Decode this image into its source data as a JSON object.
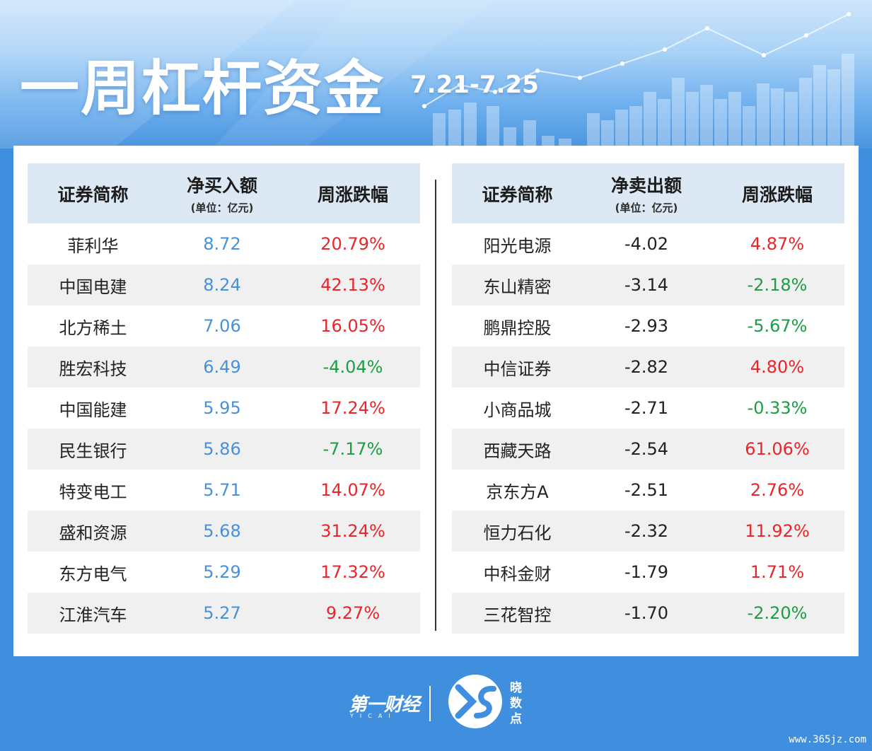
{
  "header": {
    "title": "一周杠杆资金",
    "date_range": "7.21-7.25"
  },
  "buy_table": {
    "col_name": "证券简称",
    "col_amount": "净买入额",
    "col_amount_unit": "(单位：亿元)",
    "col_change": "周涨跌幅",
    "rows": [
      {
        "name": "菲利华",
        "amount": "8.72",
        "change": "20.79%",
        "dir": "up"
      },
      {
        "name": "中国电建",
        "amount": "8.24",
        "change": "42.13%",
        "dir": "up"
      },
      {
        "name": "北方稀土",
        "amount": "7.06",
        "change": "16.05%",
        "dir": "up"
      },
      {
        "name": "胜宏科技",
        "amount": "6.49",
        "change": "-4.04%",
        "dir": "down"
      },
      {
        "name": "中国能建",
        "amount": "5.95",
        "change": "17.24%",
        "dir": "up"
      },
      {
        "name": "民生银行",
        "amount": "5.86",
        "change": "-7.17%",
        "dir": "down"
      },
      {
        "name": "特变电工",
        "amount": "5.71",
        "change": "14.07%",
        "dir": "up"
      },
      {
        "name": "盛和资源",
        "amount": "5.68",
        "change": "31.24%",
        "dir": "up"
      },
      {
        "name": "东方电气",
        "amount": "5.29",
        "change": "17.32%",
        "dir": "up"
      },
      {
        "name": "江淮汽车",
        "amount": "5.27",
        "change": "9.27%",
        "dir": "up"
      }
    ]
  },
  "sell_table": {
    "col_name": "证券简称",
    "col_amount": "净卖出额",
    "col_amount_unit": "(单位：亿元)",
    "col_change": "周涨跌幅",
    "rows": [
      {
        "name": "阳光电源",
        "amount": "-4.02",
        "change": "4.87%",
        "dir": "up"
      },
      {
        "name": "东山精密",
        "amount": "-3.14",
        "change": "-2.18%",
        "dir": "down"
      },
      {
        "name": "鹏鼎控股",
        "amount": "-2.93",
        "change": "-5.67%",
        "dir": "down"
      },
      {
        "name": "中信证券",
        "amount": "-2.82",
        "change": "4.80%",
        "dir": "up"
      },
      {
        "name": "小商品城",
        "amount": "-2.71",
        "change": "-0.33%",
        "dir": "down"
      },
      {
        "name": "西藏天路",
        "amount": "-2.54",
        "change": "61.06%",
        "dir": "up"
      },
      {
        "name": "京东方A",
        "amount": "-2.51",
        "change": "2.76%",
        "dir": "up"
      },
      {
        "name": "恒力石化",
        "amount": "-2.32",
        "change": "11.92%",
        "dir": "up"
      },
      {
        "name": "中科金财",
        "amount": "-1.79",
        "change": "1.71%",
        "dir": "up"
      },
      {
        "name": "三花智控",
        "amount": "-1.70",
        "change": "-2.20%",
        "dir": "down"
      }
    ]
  },
  "footer": {
    "brand": "第一财经",
    "brand_sub": "YICAI",
    "product": "晓数点",
    "watermark": "www.365jz.com"
  },
  "colors": {
    "up": "#e8252a",
    "down": "#1c9e44",
    "buy_amount": "#4a90d9",
    "background": "#3f8fde",
    "header_row": "#dce8f4"
  }
}
